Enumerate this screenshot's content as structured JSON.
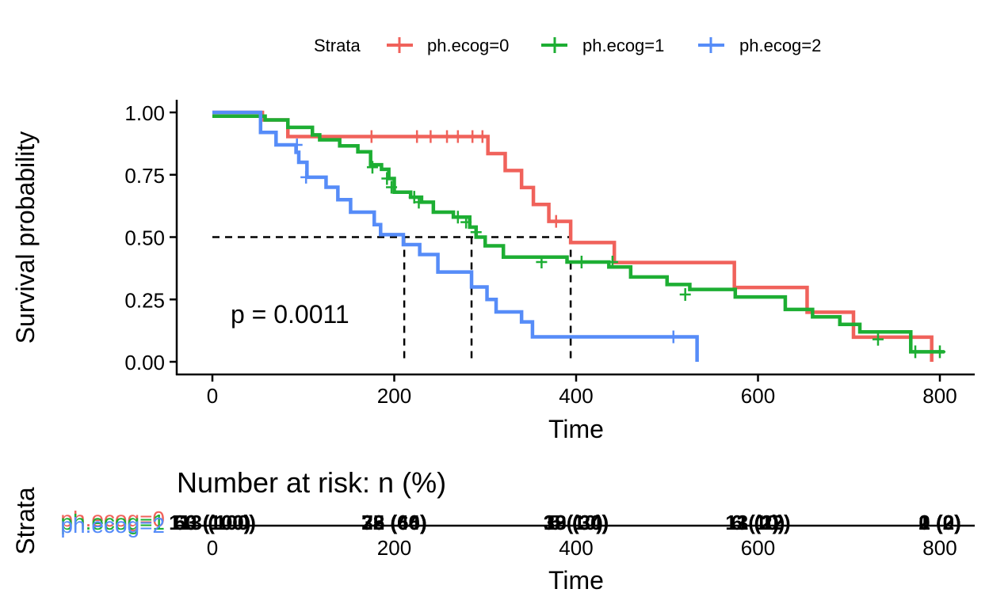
{
  "colors": {
    "ph_ecog_0": "#F0625B",
    "ph_ecog_1": "#1DAE33",
    "ph_ecog_2": "#568CF8",
    "axis": "#000000",
    "text": "#000000"
  },
  "legend": {
    "title": "Strata",
    "placement": "top",
    "items": [
      {
        "label": "ph.ecog=0",
        "color": "#F0625B"
      },
      {
        "label": "ph.ecog=1",
        "color": "#1DAE33"
      },
      {
        "label": "ph.ecog=2",
        "color": "#568CF8"
      }
    ]
  },
  "chart_data": [
    {
      "type": "line",
      "subtype": "kaplan-meier step survival curves",
      "title": "",
      "xlabel": "Time",
      "ylabel": "Survival probability",
      "xlim": [
        0,
        830
      ],
      "ylim": [
        0,
        1
      ],
      "xticks": [
        0,
        200,
        400,
        600,
        800
      ],
      "yticks": [
        0.0,
        0.25,
        0.5,
        0.75,
        1.0
      ],
      "xtick_labels": [
        "0",
        "200",
        "400",
        "600",
        "800"
      ],
      "ytick_labels": [
        "0.00",
        "0.25",
        "0.50",
        "0.75",
        "1.00"
      ],
      "grid": false,
      "annotation": "p = 0.0011",
      "annotation_pos": {
        "x": 20,
        "y": 0.19
      },
      "median_line": {
        "y": 0.5,
        "medians": [
          394,
          285,
          211
        ]
      },
      "series": [
        {
          "name": "ph.ecog=0",
          "color": "#F0625B",
          "steps": [
            [
              0,
              1.0
            ],
            [
              55,
              0.97
            ],
            [
              83,
              0.903
            ],
            [
              303,
              0.835
            ],
            [
              322,
              0.767
            ],
            [
              340,
              0.699
            ],
            [
              353,
              0.631
            ],
            [
              370,
              0.563
            ],
            [
              394,
              0.478
            ],
            [
              442,
              0.398
            ],
            [
              574,
              0.298
            ],
            [
              654,
              0.199
            ],
            [
              705,
              0.099
            ],
            [
              791,
              0.0
            ]
          ],
          "end": 791,
          "censors": [
            [
              175,
              0.903
            ],
            [
              225,
              0.903
            ],
            [
              240,
              0.903
            ],
            [
              258,
              0.903
            ],
            [
              270,
              0.903
            ],
            [
              286,
              0.903
            ],
            [
              297,
              0.903
            ],
            [
              378,
              0.563
            ]
          ]
        },
        {
          "name": "ph.ecog=1",
          "color": "#1DAE33",
          "steps": [
            [
              0,
              0.985
            ],
            [
              58,
              0.97
            ],
            [
              83,
              0.94
            ],
            [
              110,
              0.91
            ],
            [
              118,
              0.89
            ],
            [
              140,
              0.866
            ],
            [
              160,
              0.842
            ],
            [
              174,
              0.79
            ],
            [
              186,
              0.772
            ],
            [
              194,
              0.735
            ],
            [
              200,
              0.68
            ],
            [
              218,
              0.66
            ],
            [
              230,
              0.64
            ],
            [
              243,
              0.6
            ],
            [
              265,
              0.58
            ],
            [
              283,
              0.54
            ],
            [
              290,
              0.5
            ],
            [
              300,
              0.465
            ],
            [
              320,
              0.42
            ],
            [
              340,
              0.42
            ],
            [
              390,
              0.4
            ],
            [
              400,
              0.4
            ],
            [
              436,
              0.38
            ],
            [
              460,
              0.34
            ],
            [
              500,
              0.31
            ],
            [
              525,
              0.29
            ],
            [
              575,
              0.26
            ],
            [
              630,
              0.21
            ],
            [
              660,
              0.18
            ],
            [
              690,
              0.15
            ],
            [
              712,
              0.12
            ],
            [
              768,
              0.04
            ],
            [
              805,
              0.04
            ]
          ],
          "end": 805,
          "censors": [
            [
              176,
              0.78
            ],
            [
              192,
              0.735
            ],
            [
              197,
              0.7
            ],
            [
              222,
              0.66
            ],
            [
              227,
              0.64
            ],
            [
              270,
              0.58
            ],
            [
              279,
              0.56
            ],
            [
              290,
              0.52
            ],
            [
              362,
              0.4
            ],
            [
              406,
              0.4
            ],
            [
              440,
              0.4
            ],
            [
              520,
              0.27
            ],
            [
              732,
              0.09
            ],
            [
              773,
              0.04
            ],
            [
              800,
              0.04
            ]
          ]
        },
        {
          "name": "ph.ecog=2",
          "color": "#568CF8",
          "steps": [
            [
              0,
              1.0
            ],
            [
              53,
              0.92
            ],
            [
              70,
              0.87
            ],
            [
              92,
              0.84
            ],
            [
              95,
              0.8
            ],
            [
              104,
              0.74
            ],
            [
              125,
              0.7
            ],
            [
              138,
              0.65
            ],
            [
              152,
              0.6
            ],
            [
              178,
              0.55
            ],
            [
              185,
              0.51
            ],
            [
              210,
              0.47
            ],
            [
              228,
              0.43
            ],
            [
              248,
              0.36
            ],
            [
              285,
              0.3
            ],
            [
              302,
              0.25
            ],
            [
              312,
              0.2
            ],
            [
              340,
              0.16
            ],
            [
              352,
              0.1
            ],
            [
              533,
              0.0
            ]
          ],
          "end": 533,
          "censors": [
            [
              93,
              0.87
            ],
            [
              103,
              0.74
            ],
            [
              507,
              0.1
            ]
          ]
        }
      ]
    },
    {
      "type": "table",
      "title": "Number at risk: n (%)",
      "xlabel": "Time",
      "ylabel": "Strata",
      "xticks": [
        0,
        200,
        400,
        600,
        800
      ],
      "xtick_labels": [
        "0",
        "200",
        "400",
        "600",
        "800"
      ],
      "rows": [
        {
          "name": "ph.ecog=0",
          "color": "#F0625B",
          "values": [
            "63 (100)",
            "38 (60)",
            "19 (30)",
            "6 (10)",
            "1 (2)"
          ]
        },
        {
          "name": "ph.ecog=1",
          "color": "#1DAE33",
          "values": [
            "113 (100)",
            "75 (66)",
            "38 (34)",
            "13 (12)",
            "2 (2)"
          ]
        },
        {
          "name": "ph.ecog=2",
          "color": "#568CF8",
          "values": [
            "50 (100)",
            "22 (44)",
            "5 (10)",
            "1 (2)",
            "0 (0)"
          ]
        }
      ]
    }
  ]
}
